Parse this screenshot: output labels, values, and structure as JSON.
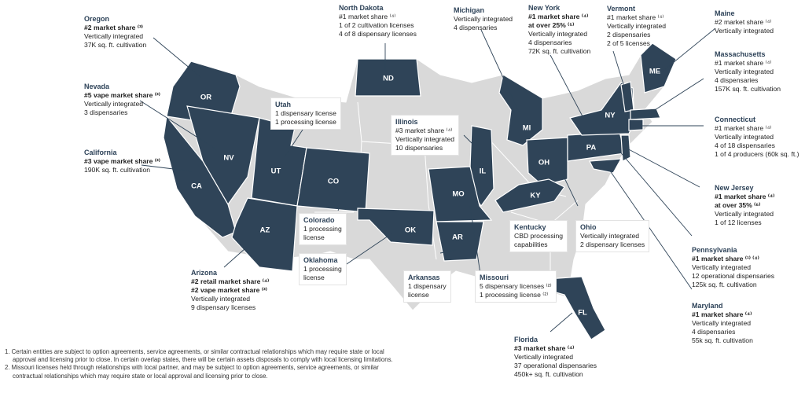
{
  "colors": {
    "operating": "#2f4458",
    "other": "#d9d9d9",
    "border": "#ffffff",
    "leader": "#2f4458"
  },
  "state_abbr": {
    "or": "OR",
    "nv": "NV",
    "ca": "CA",
    "ut": "UT",
    "co": "CO",
    "az": "AZ",
    "nd": "ND",
    "mi": "MI",
    "il": "IL",
    "oh": "OH",
    "pa": "PA",
    "ny": "NY",
    "me": "ME",
    "ky": "KY",
    "mo": "MO",
    "ar": "AR",
    "ok": "OK",
    "fl": "FL"
  },
  "callouts": {
    "oregon": {
      "title": "Oregon",
      "bold": [
        "#2 market share ⁽³⁾"
      ],
      "lines": [
        "Vertically integrated",
        "37K sq. ft. cultivation"
      ]
    },
    "nevada": {
      "title": "Nevada",
      "bold": [
        "#5 vape market share ⁽³⁾"
      ],
      "lines": [
        "Vertically integrated",
        "3 dispensaries"
      ]
    },
    "california": {
      "title": "California",
      "bold": [
        "#3 vape market share ⁽³⁾"
      ],
      "lines": [
        "190K sq. ft. cultivation"
      ]
    },
    "arizona": {
      "title": "Arizona",
      "bold": [
        "#2 retail market share ⁽⁴⁾",
        "#2 vape market share ⁽³⁾"
      ],
      "lines": [
        "Vertically integrated",
        "9 dispensary licenses"
      ]
    },
    "utah": {
      "title": "Utah",
      "bold": [],
      "lines": [
        "1 dispensary license",
        "1 processing license"
      ]
    },
    "colorado": {
      "title": "Colorado",
      "bold": [],
      "lines": [
        "1 processing",
        "license"
      ]
    },
    "oklahoma": {
      "title": "Oklahoma",
      "bold": [],
      "lines": [
        "1 processing",
        "license"
      ]
    },
    "north_dakota": {
      "title": "North Dakota",
      "bold": [],
      "lines": [
        "#1 market share ⁽⁴⁾",
        "1 of 2 cultivation licenses",
        "4 of 8 dispensary licenses"
      ]
    },
    "illinois": {
      "title": "Illinois",
      "bold": [],
      "lines": [
        "#3 market share ⁽⁴⁾",
        "Vertically integrated",
        "10 dispensaries"
      ]
    },
    "michigan": {
      "title": "Michigan",
      "bold": [],
      "lines": [
        "Vertically integrated",
        "4 dispensaries"
      ]
    },
    "new_york": {
      "title": "New York",
      "bold": [
        "#1 market share ⁽⁴⁾",
        "at over 25% ⁽⁵⁾"
      ],
      "lines": [
        "Vertically integrated",
        "4 dispensaries",
        "72K sq. ft. cultivation"
      ]
    },
    "vermont": {
      "title": "Vermont",
      "bold": [],
      "lines": [
        "#1 market share ⁽⁴⁾",
        "Vertically integrated",
        "2 dispensaries",
        "2 of 5 licenses"
      ]
    },
    "maine": {
      "title": "Maine",
      "bold": [],
      "lines": [
        "#2 market share ⁽⁴⁾",
        "Vertically integrated"
      ]
    },
    "massachusetts": {
      "title": "Massachusetts",
      "bold": [],
      "lines": [
        "#1 market share ⁽⁴⁾",
        "Vertically integrated",
        "4 dispensaries",
        "157K sq. ft. cultivation"
      ]
    },
    "connecticut": {
      "title": "Connecticut",
      "bold": [],
      "lines": [
        "#1 market share ⁽⁴⁾",
        "Vertically integrated",
        "4 of 18 dispensaries",
        "1 of 4 producers (60k sq. ft.)"
      ]
    },
    "new_jersey": {
      "title": "New Jersey",
      "bold": [
        "#1 market share ⁽⁴⁾",
        "at over 35% ⁽⁶⁾"
      ],
      "lines": [
        "Vertically integrated",
        "1 of 12 licenses"
      ]
    },
    "pennsylvania": {
      "title": "Pennsylvania",
      "bold": [
        "#1 market share ⁽¹⁾ ⁽⁴⁾"
      ],
      "lines": [
        "Vertically integrated",
        "12 operational dispensaries",
        "125k sq. ft. cultivation"
      ]
    },
    "maryland": {
      "title": "Maryland",
      "bold": [
        "#1 market share ⁽⁴⁾"
      ],
      "lines": [
        "Vertically integrated",
        "4 dispensaries",
        "55k sq. ft. cultivation"
      ]
    },
    "kentucky": {
      "title": "Kentucky",
      "bold": [],
      "lines": [
        "CBD processing",
        "capabilities"
      ]
    },
    "ohio": {
      "title": "Ohio",
      "bold": [],
      "lines": [
        "Vertically integrated",
        "2 dispensary licenses"
      ]
    },
    "arkansas": {
      "title": "Arkansas",
      "bold": [],
      "lines": [
        "1 dispensary",
        "license"
      ]
    },
    "missouri": {
      "title": "Missouri",
      "bold": [],
      "lines": [
        "5 dispensary licenses ⁽²⁾",
        "1 processing license ⁽²⁾"
      ]
    },
    "florida": {
      "title": "Florida",
      "bold": [
        "#3 market share ⁽⁴⁾"
      ],
      "lines": [
        "Vertically integrated",
        "37 operational dispensaries",
        "450k+ sq. ft. cultivation"
      ]
    }
  },
  "footnotes": [
    "1. Certain entities are subject to option agreements, service agreements, or similar contractual relationships which may require state or local approval and licensing prior to close. In certain overlap states, there will be certain assets disposals to comply with local licensing limitations.",
    "2. Missouri licenses held through relationships with local partner, and may be subject to option agreements, service agreements, or similar contractual relationships which may require state or local approval and licensing prior to close."
  ]
}
